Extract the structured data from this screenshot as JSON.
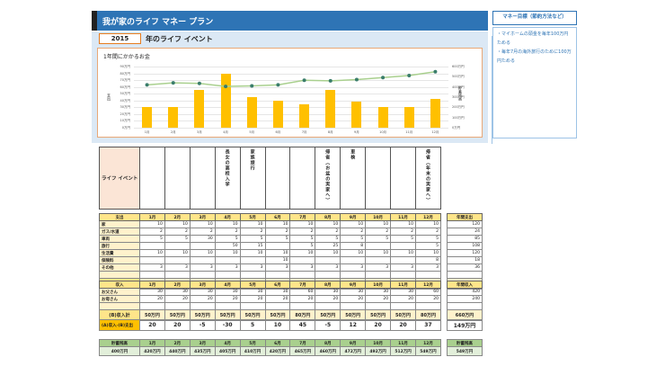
{
  "header": {
    "title": "我が家のライフ マネー プラン",
    "year": "2015",
    "year_suffix": "年のライフ イベント"
  },
  "goal": {
    "title": "マネー目標（節約方法など）",
    "lines": [
      "・マイホームの頭金を毎年100万円ためる",
      "・毎年7月の海外旅行のために100万円ためる"
    ]
  },
  "chart_data": {
    "type": "bar",
    "title": "1年間にかかるお金",
    "categories": [
      "1月",
      "2月",
      "3月",
      "4月",
      "5月",
      "6月",
      "7月",
      "8月",
      "9月",
      "10月",
      "11月",
      "12月"
    ],
    "series": [
      {
        "name": "支出",
        "type": "bar",
        "axis": "left",
        "values": [
          30,
          30,
          55,
          80,
          45,
          40,
          35,
          55,
          38,
          30,
          30,
          43
        ]
      },
      {
        "name": "貯蓄残高",
        "type": "line",
        "axis": "right",
        "values": [
          420,
          440,
          435,
          405,
          410,
          420,
          465,
          460,
          472,
          492,
          512,
          549
        ]
      }
    ],
    "ylabel_left": "支出",
    "ylabel_right": "貯蓄残高",
    "ylim_left": [
      0,
      90
    ],
    "ylim_right": [
      0,
      600
    ],
    "yticks_left": [
      "0万円",
      "10万円",
      "20万円",
      "30万円",
      "40万円",
      "50万円",
      "60万円",
      "70万円",
      "80万円",
      "90万円"
    ],
    "yticks_right": [
      "0万円",
      "100万円",
      "200万円",
      "300万円",
      "400万円",
      "500万円",
      "600万円"
    ],
    "colors": {
      "bar": "#ffc000",
      "line": "#a9d08e",
      "marker": "#3a7d6b"
    }
  },
  "events": {
    "label": "ライフ イベント",
    "items": [
      "",
      "",
      "",
      "長女の高校入学",
      "家族旅行",
      "",
      "",
      "帰省（お盆の実家へ）",
      "車検",
      "",
      "",
      "帰省（年末の実家へ）"
    ]
  },
  "months": [
    "1月",
    "2月",
    "3月",
    "4月",
    "5月",
    "6月",
    "7月",
    "8月",
    "9月",
    "10月",
    "11月",
    "12月"
  ],
  "expenses": {
    "header": "支出",
    "annual_header": "年間支出",
    "rows": [
      {
        "label": "家",
        "values": [
          "10",
          "10",
          "10",
          "10",
          "10",
          "10",
          "10",
          "10",
          "10",
          "10",
          "10",
          "10"
        ],
        "annual": "120"
      },
      {
        "label": "ガス/水道",
        "values": [
          "2",
          "2",
          "2",
          "2",
          "2",
          "2",
          "2",
          "2",
          "2",
          "2",
          "2",
          "2"
        ],
        "annual": "24"
      },
      {
        "label": "車両",
        "values": [
          "5",
          "5",
          "30",
          "5",
          "5",
          "5",
          "5",
          "5",
          "5",
          "5",
          "5",
          "5"
        ],
        "annual": "85"
      },
      {
        "label": "旅行",
        "values": [
          "",
          "",
          "",
          "50",
          "15",
          "",
          "5",
          "25",
          "8",
          "",
          "",
          "5"
        ],
        "annual": "108"
      },
      {
        "label": "生活費",
        "values": [
          "10",
          "10",
          "10",
          "10",
          "10",
          "10",
          "10",
          "10",
          "10",
          "10",
          "10",
          "10"
        ],
        "annual": "120"
      },
      {
        "label": "保険料",
        "values": [
          "",
          "",
          "",
          "",
          "",
          "10",
          "",
          "",
          "",
          "",
          "",
          "8"
        ],
        "annual": "18"
      },
      {
        "label": "その他",
        "values": [
          "3",
          "3",
          "3",
          "3",
          "3",
          "3",
          "3",
          "3",
          "3",
          "3",
          "3",
          "3"
        ],
        "annual": "36"
      },
      {
        "label": "",
        "values": [
          "",
          "",
          "",
          "",
          "",
          "",
          "",
          "",
          "",
          "",
          "",
          ""
        ],
        "annual": ""
      }
    ],
    "total_label": "(A)支出計",
    "totals": [
      "30万円",
      "30万円",
      "55万円",
      "80万円",
      "45万円",
      "40万円",
      "35万円",
      "55万円",
      "38万円",
      "30万円",
      "30万円",
      "43万円"
    ],
    "annual_total": "511万円"
  },
  "income": {
    "header": "収入",
    "annual_header": "年間収入",
    "rows": [
      {
        "label": "お父さん",
        "values": [
          "30",
          "30",
          "30",
          "30",
          "30",
          "30",
          "60",
          "30",
          "30",
          "30",
          "30",
          "60"
        ],
        "annual": "420"
      },
      {
        "label": "お母さん",
        "values": [
          "20",
          "20",
          "20",
          "20",
          "20",
          "20",
          "20",
          "20",
          "20",
          "20",
          "20",
          "20"
        ],
        "annual": "240"
      },
      {
        "label": "",
        "values": [
          "",
          "",
          "",
          "",
          "",
          "",
          "",
          "",
          "",
          "",
          "",
          ""
        ],
        "annual": ""
      }
    ],
    "total_label": "(B)収入計",
    "totals": [
      "50万円",
      "50万円",
      "50万円",
      "50万円",
      "50万円",
      "50万円",
      "80万円",
      "50万円",
      "50万円",
      "50万円",
      "50万円",
      "80万円"
    ],
    "annual_total": "660万円"
  },
  "diff": {
    "label": "(A)収入-(B)支出",
    "values": [
      "20",
      "20",
      "-5",
      "-30",
      "5",
      "10",
      "45",
      "-5",
      "12",
      "20",
      "20",
      "37"
    ],
    "annual": "149万円"
  },
  "savings": {
    "label": "貯蓄残高",
    "initial": "400万円",
    "values": [
      "420万円",
      "440万円",
      "435万円",
      "405万円",
      "410万円",
      "420万円",
      "465万円",
      "460万円",
      "472万円",
      "492万円",
      "512万円",
      "549万円"
    ],
    "annual_header": "貯蓄残高",
    "annual": "549万円"
  }
}
